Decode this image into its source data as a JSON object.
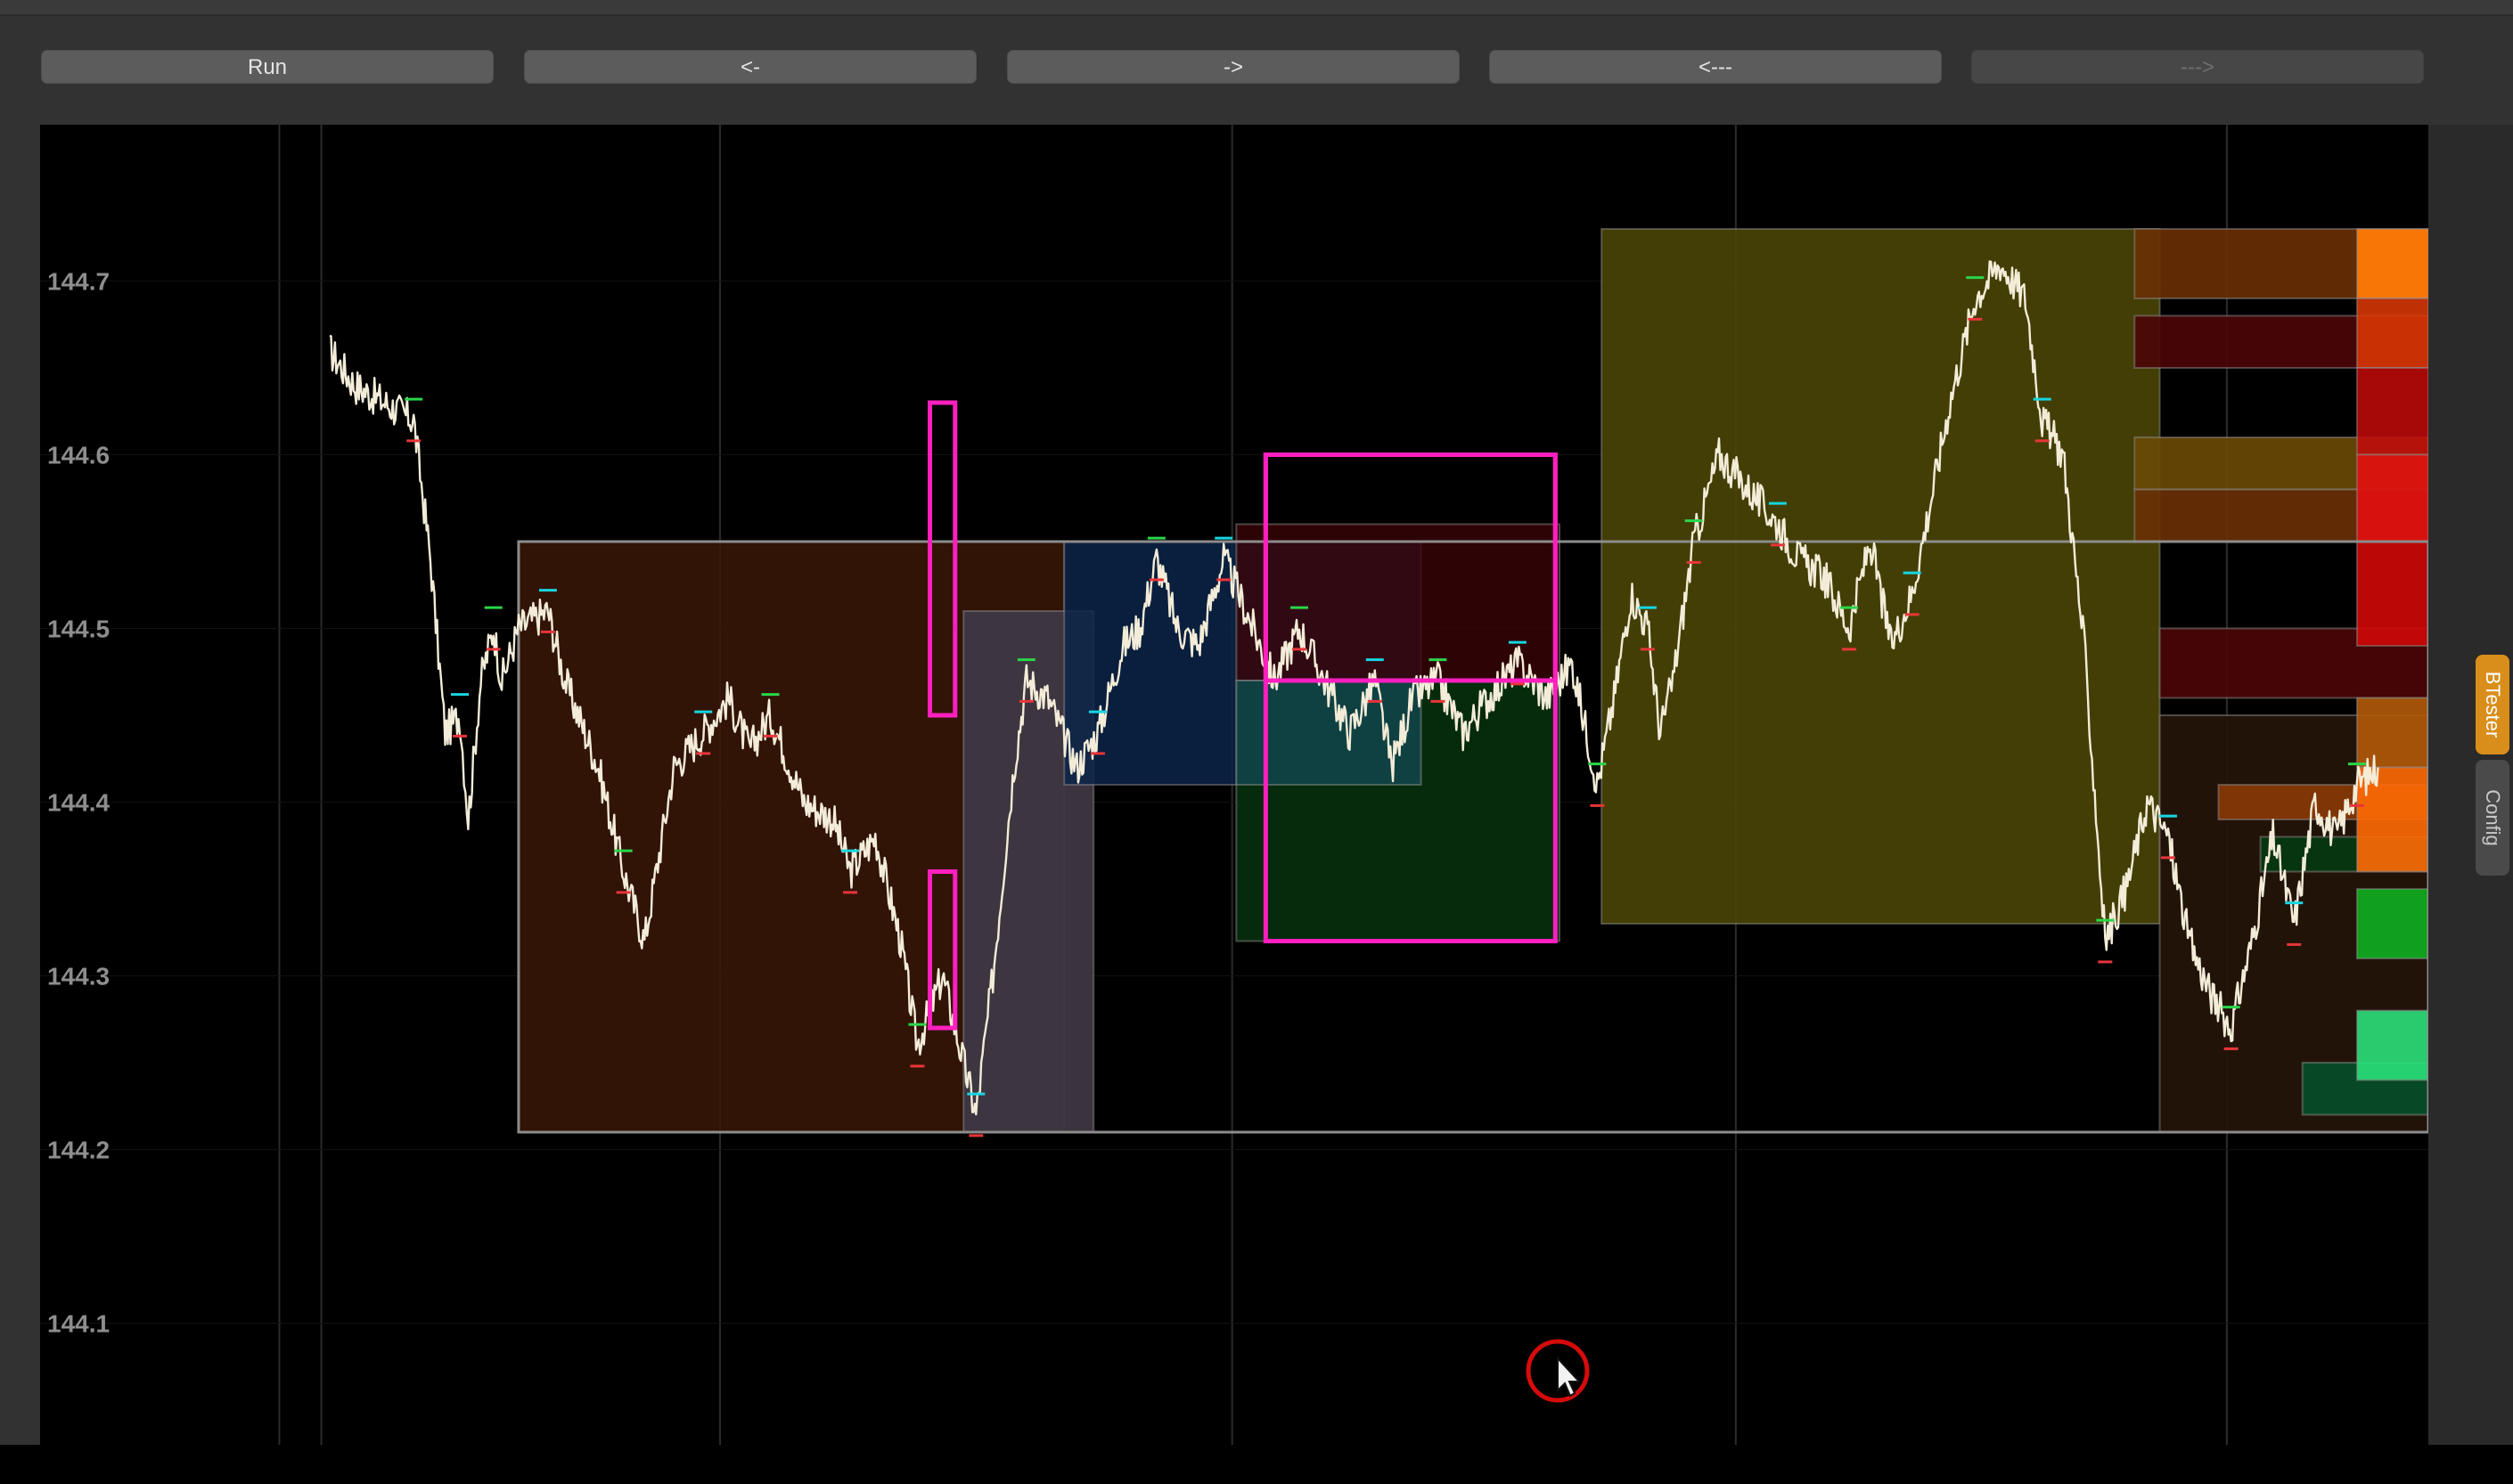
{
  "toolbar": {
    "buttons": [
      {
        "label": "Run",
        "enabled": true
      },
      {
        "label": "<-",
        "enabled": true
      },
      {
        "label": "->",
        "enabled": true
      },
      {
        "label": "<---",
        "enabled": true
      },
      {
        "label": "--->",
        "enabled": false
      }
    ]
  },
  "side_tabs": {
    "btester": "BTester",
    "config": "Config"
  },
  "colors": {
    "background": "#000000",
    "price_line": "#f3ecd8",
    "highlight_box": "#ff1fbf",
    "active_tab": "#d98e1c"
  },
  "chart_data": {
    "type": "line",
    "title": "",
    "xlabel": "",
    "ylabel": "",
    "ylim": [
      144.03,
      144.79
    ],
    "y_ticks": [
      144.7,
      144.6,
      144.5,
      144.4,
      144.3,
      144.2,
      144.1
    ],
    "y_tick_labels": [
      "144.7",
      "144.6",
      "144.5",
      "144.4",
      "144.3",
      "144.2",
      "144.1"
    ],
    "grid": true,
    "x_range": [
      0,
      1000
    ],
    "price_anchors": [
      [
        0,
        144.66
      ],
      [
        12,
        144.64
      ],
      [
        40,
        144.62
      ],
      [
        48,
        144.54
      ],
      [
        55,
        144.44
      ],
      [
        62,
        144.45
      ],
      [
        66,
        144.39
      ],
      [
        72,
        144.47
      ],
      [
        78,
        144.5
      ],
      [
        82,
        144.47
      ],
      [
        90,
        144.5
      ],
      [
        104,
        144.51
      ],
      [
        112,
        144.47
      ],
      [
        128,
        144.42
      ],
      [
        140,
        144.36
      ],
      [
        150,
        144.32
      ],
      [
        164,
        144.42
      ],
      [
        178,
        144.44
      ],
      [
        190,
        144.46
      ],
      [
        200,
        144.43
      ],
      [
        210,
        144.45
      ],
      [
        226,
        144.4
      ],
      [
        240,
        144.39
      ],
      [
        248,
        144.36
      ],
      [
        260,
        144.38
      ],
      [
        272,
        144.32
      ],
      [
        280,
        144.26
      ],
      [
        292,
        144.3
      ],
      [
        302,
        144.25
      ],
      [
        308,
        144.22
      ],
      [
        316,
        144.3
      ],
      [
        326,
        144.42
      ],
      [
        332,
        144.47
      ],
      [
        342,
        144.46
      ],
      [
        356,
        144.42
      ],
      [
        366,
        144.44
      ],
      [
        378,
        144.49
      ],
      [
        386,
        144.5
      ],
      [
        394,
        144.54
      ],
      [
        404,
        144.5
      ],
      [
        414,
        144.49
      ],
      [
        426,
        144.54
      ],
      [
        440,
        144.5
      ],
      [
        450,
        144.47
      ],
      [
        462,
        144.5
      ],
      [
        474,
        144.47
      ],
      [
        486,
        144.44
      ],
      [
        498,
        144.47
      ],
      [
        506,
        144.42
      ],
      [
        516,
        144.46
      ],
      [
        528,
        144.47
      ],
      [
        540,
        144.44
      ],
      [
        552,
        144.46
      ],
      [
        566,
        144.48
      ],
      [
        580,
        144.46
      ],
      [
        592,
        144.48
      ],
      [
        604,
        144.41
      ],
      [
        612,
        144.46
      ],
      [
        620,
        144.52
      ],
      [
        628,
        144.5
      ],
      [
        634,
        144.44
      ],
      [
        640,
        144.47
      ],
      [
        650,
        144.55
      ],
      [
        662,
        144.6
      ],
      [
        676,
        144.58
      ],
      [
        690,
        144.56
      ],
      [
        700,
        144.54
      ],
      [
        712,
        144.53
      ],
      [
        724,
        144.5
      ],
      [
        734,
        144.55
      ],
      [
        744,
        144.49
      ],
      [
        754,
        144.52
      ],
      [
        764,
        144.58
      ],
      [
        772,
        144.63
      ],
      [
        784,
        144.69
      ],
      [
        796,
        144.71
      ],
      [
        808,
        144.69
      ],
      [
        816,
        144.62
      ],
      [
        826,
        144.6
      ],
      [
        836,
        144.49
      ],
      [
        846,
        144.32
      ],
      [
        856,
        144.35
      ],
      [
        866,
        144.4
      ],
      [
        876,
        144.38
      ],
      [
        886,
        144.32
      ],
      [
        896,
        144.29
      ],
      [
        906,
        144.27
      ],
      [
        916,
        144.32
      ],
      [
        926,
        144.38
      ],
      [
        936,
        144.33
      ],
      [
        946,
        144.4
      ],
      [
        956,
        144.38
      ],
      [
        966,
        144.41
      ],
      [
        976,
        144.42
      ]
    ],
    "zones": [
      {
        "x0": 90,
        "x1": 350,
        "y0": 144.21,
        "y1": 144.55,
        "fill": "#3a1806",
        "opacity": 0.85
      },
      {
        "x0": 302,
        "x1": 364,
        "y0": 144.21,
        "y1": 144.51,
        "fill": "#3e3742",
        "opacity": 0.95
      },
      {
        "x0": 350,
        "x1": 520,
        "y0": 144.41,
        "y1": 144.55,
        "fill": "#0c2548",
        "opacity": 0.85
      },
      {
        "x0": 432,
        "x1": 586,
        "y0": 144.32,
        "y1": 144.47,
        "fill": "#06320e",
        "opacity": 0.85
      },
      {
        "x0": 432,
        "x1": 586,
        "y0": 144.47,
        "y1": 144.56,
        "fill": "#3a0408",
        "opacity": 0.8
      },
      {
        "x0": 432,
        "x1": 520,
        "y0": 144.41,
        "y1": 144.47,
        "fill": "#13444a",
        "opacity": 0.85
      },
      {
        "x0": 606,
        "x1": 872,
        "y0": 144.33,
        "y1": 144.73,
        "fill": "#4a4506",
        "opacity": 0.9
      },
      {
        "x0": 872,
        "x1": 1000,
        "y0": 144.21,
        "y1": 144.45,
        "fill": "#24140a",
        "opacity": 0.95
      },
      {
        "x0": 860,
        "x1": 1000,
        "y0": 144.69,
        "y1": 144.73,
        "fill": "#6a3004",
        "opacity": 0.9
      },
      {
        "x0": 860,
        "x1": 1000,
        "y0": 144.65,
        "y1": 144.68,
        "fill": "#4a0606",
        "opacity": 0.9
      },
      {
        "x0": 860,
        "x1": 1000,
        "y0": 144.58,
        "y1": 144.61,
        "fill": "#6a4a06",
        "opacity": 0.9
      },
      {
        "x0": 860,
        "x1": 1000,
        "y0": 144.55,
        "y1": 144.58,
        "fill": "#6a3006",
        "opacity": 0.9
      },
      {
        "x0": 872,
        "x1": 1000,
        "y0": 144.46,
        "y1": 144.5,
        "fill": "#4a0606",
        "opacity": 0.9
      },
      {
        "x0": 900,
        "x1": 1000,
        "y0": 144.39,
        "y1": 144.41,
        "fill": "#8a3a06",
        "opacity": 0.9
      },
      {
        "x0": 920,
        "x1": 1000,
        "y0": 144.36,
        "y1": 144.38,
        "fill": "#043a12",
        "opacity": 0.9
      },
      {
        "x0": 940,
        "x1": 1000,
        "y0": 144.22,
        "y1": 144.25,
        "fill": "#04502a",
        "opacity": 0.9
      },
      {
        "x0": 966,
        "x1": 1000,
        "y0": 144.69,
        "y1": 144.73,
        "fill": "#ff7a06",
        "opacity": 0.95
      },
      {
        "x0": 966,
        "x1": 1000,
        "y0": 144.65,
        "y1": 144.69,
        "fill": "#e03a06",
        "opacity": 0.85
      },
      {
        "x0": 966,
        "x1": 1000,
        "y0": 144.6,
        "y1": 144.65,
        "fill": "#c40a0a",
        "opacity": 0.85
      },
      {
        "x0": 966,
        "x1": 1000,
        "y0": 144.55,
        "y1": 144.6,
        "fill": "#e41010",
        "opacity": 0.9
      },
      {
        "x0": 966,
        "x1": 1000,
        "y0": 144.49,
        "y1": 144.55,
        "fill": "#d00808",
        "opacity": 0.9
      },
      {
        "x0": 966,
        "x1": 1000,
        "y0": 144.42,
        "y1": 144.46,
        "fill": "#b45a0a",
        "opacity": 0.9
      },
      {
        "x0": 966,
        "x1": 1000,
        "y0": 144.36,
        "y1": 144.42,
        "fill": "#ff6a06",
        "opacity": 0.9
      },
      {
        "x0": 966,
        "x1": 1000,
        "y0": 144.31,
        "y1": 144.35,
        "fill": "#10b020",
        "opacity": 0.9
      },
      {
        "x0": 966,
        "x1": 1000,
        "y0": 144.24,
        "y1": 144.28,
        "fill": "#2ae07a",
        "opacity": 0.9
      }
    ],
    "highlight_boxes": [
      {
        "x0": 286,
        "x1": 298,
        "y0": 144.45,
        "y1": 144.63
      },
      {
        "x0": 286,
        "x1": 298,
        "y0": 144.27,
        "y1": 144.36
      },
      {
        "x0": 446,
        "x1": 584,
        "y0": 144.32,
        "y1": 144.6
      },
      {
        "x0": 446,
        "x1": 584,
        "y0": 144.47,
        "y1": 144.6
      }
    ],
    "range_outline": {
      "x0": 90,
      "x1": 1000,
      "y0": 144.21,
      "y1": 144.55
    },
    "vertical_gridlines_x": [
      -24,
      -4,
      186,
      430,
      670,
      904
    ]
  }
}
